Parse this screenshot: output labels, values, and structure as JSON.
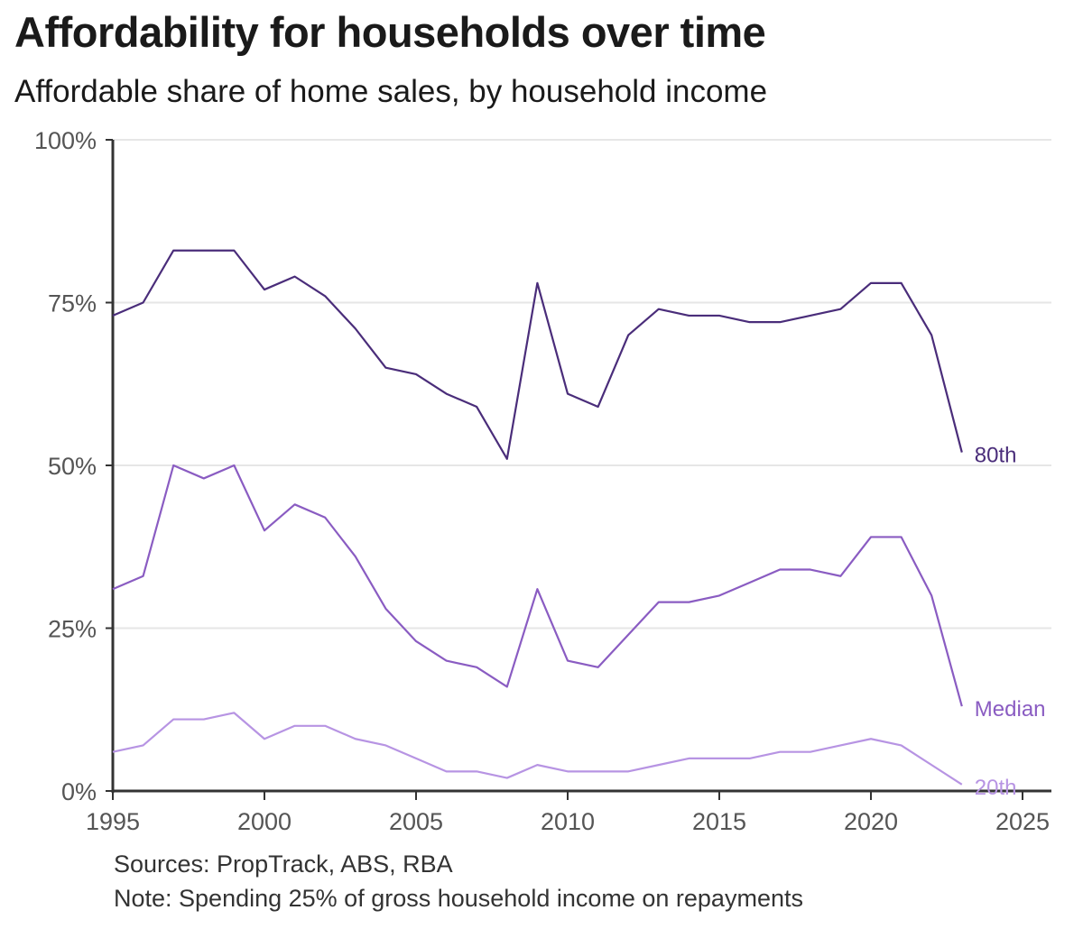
{
  "chart_data": {
    "type": "line",
    "title": "Affordability for households over time",
    "subtitle": "Affordable share of home sales, by household income",
    "xlabel": "",
    "ylabel": "",
    "xlim": [
      1995,
      2025
    ],
    "ylim": [
      0,
      100
    ],
    "x_ticks": [
      1995,
      2000,
      2005,
      2010,
      2015,
      2020,
      2025
    ],
    "y_ticks": [
      0,
      25,
      50,
      75,
      100
    ],
    "y_tick_labels": [
      "0%",
      "25%",
      "50%",
      "75%",
      "100%"
    ],
    "grid": "horizontal",
    "x": [
      1995,
      1996,
      1997,
      1998,
      1999,
      2000,
      2001,
      2002,
      2003,
      2004,
      2005,
      2006,
      2007,
      2008,
      2009,
      2010,
      2011,
      2012,
      2013,
      2014,
      2015,
      2016,
      2017,
      2018,
      2019,
      2020,
      2021,
      2022,
      2023
    ],
    "series": [
      {
        "name": "80th",
        "color": "#4a2d7a",
        "values": [
          73,
          75,
          83,
          83,
          83,
          77,
          79,
          76,
          71,
          65,
          64,
          61,
          59,
          51,
          78,
          61,
          59,
          70,
          74,
          73,
          73,
          72,
          72,
          73,
          74,
          78,
          78,
          70,
          52
        ]
      },
      {
        "name": "Median",
        "color": "#8a5cc2",
        "values": [
          31,
          33,
          50,
          48,
          50,
          40,
          44,
          42,
          36,
          28,
          23,
          20,
          19,
          16,
          31,
          20,
          19,
          24,
          29,
          29,
          30,
          32,
          34,
          34,
          33,
          39,
          39,
          30,
          13
        ]
      },
      {
        "name": "20th",
        "color": "#b794e3",
        "values": [
          6,
          7,
          11,
          11,
          12,
          8,
          10,
          10,
          8,
          7,
          5,
          3,
          3,
          2,
          4,
          3,
          3,
          3,
          4,
          5,
          5,
          5,
          6,
          6,
          7,
          8,
          7,
          4,
          1
        ]
      }
    ]
  },
  "footer": {
    "sources": "Sources: PropTrack, ABS, RBA",
    "note": "Note: Spending 25% of gross household income on repayments"
  }
}
